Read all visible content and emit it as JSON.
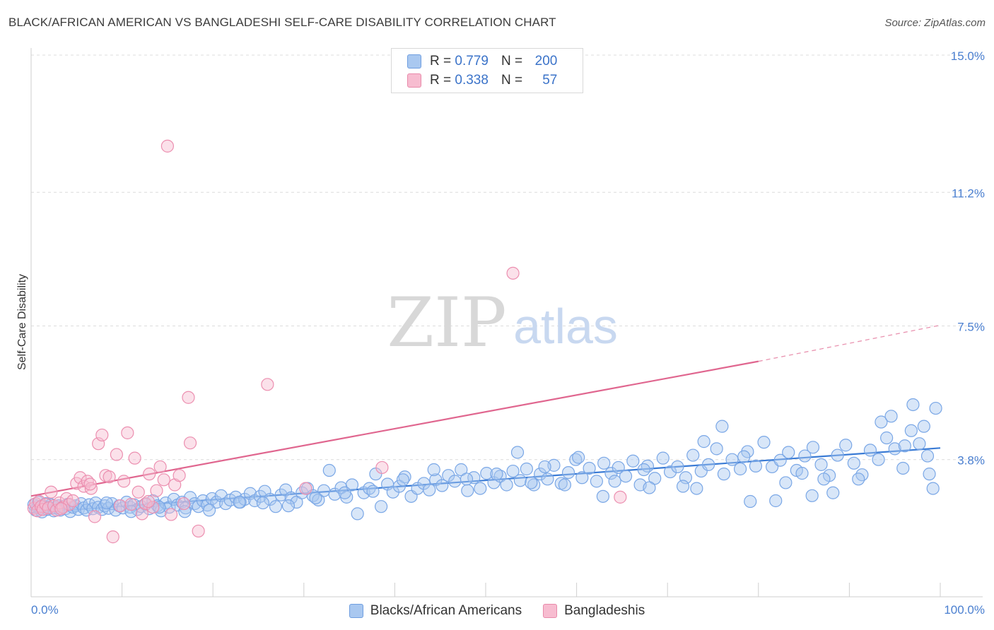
{
  "title": "BLACK/AFRICAN AMERICAN VS BANGLADESHI SELF-CARE DISABILITY CORRELATION CHART",
  "source": "Source: ZipAtlas.com",
  "watermark": {
    "zip": "ZIP",
    "atlas": "atlas"
  },
  "legend_top": [
    {
      "r_label": "R =",
      "r_value": "0.779",
      "n_label": "N =",
      "n_value": "200",
      "color": "#a9c8f0",
      "border": "#6f9ee0"
    },
    {
      "r_label": "R =",
      "r_value": "0.338",
      "n_label": "N =",
      "n_value": "57",
      "color": "#f7bcd0",
      "border": "#e88aaa"
    }
  ],
  "chart_data": {
    "type": "scatter",
    "xlabel": "",
    "ylabel": "Self-Care Disability",
    "xlim": [
      0,
      100
    ],
    "ylim": [
      0,
      15
    ],
    "x_tick_labels": [
      "0.0%",
      "100.0%"
    ],
    "y_ticks": [
      3.8,
      7.5,
      11.2,
      15.0
    ],
    "y_tick_labels": [
      "3.8%",
      "7.5%",
      "11.2%",
      "15.0%"
    ],
    "grid": "horizontal-dashed",
    "legend_position": "bottom",
    "series": [
      {
        "name": "Blacks/African Americans",
        "color": "#7aa7e6",
        "fill": "rgba(168,200,240,0.45)",
        "trend_color": "#3a7bd5",
        "trend": {
          "x0": 0,
          "y0": 2.33,
          "x1": 100,
          "y1": 4.12
        },
        "points": [
          [
            0.3,
            2.55
          ],
          [
            0.5,
            2.4
          ],
          [
            0.7,
            2.5
          ],
          [
            0.8,
            2.62
          ],
          [
            1.0,
            2.45
          ],
          [
            1.2,
            2.35
          ],
          [
            1.4,
            2.5
          ],
          [
            1.6,
            2.58
          ],
          [
            1.8,
            2.42
          ],
          [
            2.0,
            2.48
          ],
          [
            2.2,
            2.55
          ],
          [
            2.5,
            2.38
          ],
          [
            2.7,
            2.46
          ],
          [
            3.0,
            2.52
          ],
          [
            3.2,
            2.4
          ],
          [
            3.5,
            2.5
          ],
          [
            3.8,
            2.44
          ],
          [
            4.0,
            2.56
          ],
          [
            4.3,
            2.36
          ],
          [
            4.6,
            2.48
          ],
          [
            4.9,
            2.52
          ],
          [
            5.2,
            2.42
          ],
          [
            5.5,
            2.58
          ],
          [
            5.8,
            2.46
          ],
          [
            6.1,
            2.4
          ],
          [
            6.4,
            2.55
          ],
          [
            6.8,
            2.44
          ],
          [
            7.1,
            2.6
          ],
          [
            7.4,
            2.48
          ],
          [
            7.8,
            2.42
          ],
          [
            8.1,
            2.52
          ],
          [
            8.5,
            2.45
          ],
          [
            8.9,
            2.58
          ],
          [
            9.3,
            2.4
          ],
          [
            9.7,
            2.52
          ],
          [
            10.1,
            2.46
          ],
          [
            10.5,
            2.62
          ],
          [
            10.9,
            2.48
          ],
          [
            11.3,
            2.55
          ],
          [
            11.7,
            2.42
          ],
          [
            12.1,
            2.5
          ],
          [
            12.6,
            2.56
          ],
          [
            13.0,
            2.44
          ],
          [
            13.4,
            2.66
          ],
          [
            13.9,
            2.52
          ],
          [
            14.3,
            2.38
          ],
          [
            14.8,
            2.6
          ],
          [
            15.2,
            2.48
          ],
          [
            15.7,
            2.7
          ],
          [
            16.1,
            2.54
          ],
          [
            16.6,
            2.62
          ],
          [
            17.0,
            2.46
          ],
          [
            17.5,
            2.75
          ],
          [
            18.0,
            2.58
          ],
          [
            18.4,
            2.5
          ],
          [
            18.9,
            2.66
          ],
          [
            19.4,
            2.54
          ],
          [
            19.9,
            2.72
          ],
          [
            20.4,
            2.62
          ],
          [
            20.9,
            2.8
          ],
          [
            21.4,
            2.58
          ],
          [
            21.9,
            2.68
          ],
          [
            22.5,
            2.76
          ],
          [
            23.0,
            2.62
          ],
          [
            23.5,
            2.7
          ],
          [
            24.1,
            2.86
          ],
          [
            24.6,
            2.66
          ],
          [
            25.2,
            2.78
          ],
          [
            25.7,
            2.92
          ],
          [
            26.3,
            2.7
          ],
          [
            26.9,
            2.5
          ],
          [
            27.5,
            2.82
          ],
          [
            28.0,
            2.96
          ],
          [
            28.6,
            2.74
          ],
          [
            29.2,
            2.62
          ],
          [
            29.8,
            2.88
          ],
          [
            30.4,
            3.0
          ],
          [
            31.0,
            2.8
          ],
          [
            31.6,
            2.68
          ],
          [
            32.2,
            2.94
          ],
          [
            32.8,
            3.5
          ],
          [
            33.4,
            2.84
          ],
          [
            34.1,
            3.02
          ],
          [
            34.7,
            2.76
          ],
          [
            35.3,
            3.1
          ],
          [
            35.9,
            2.3
          ],
          [
            36.6,
            2.88
          ],
          [
            37.2,
            3.0
          ],
          [
            37.9,
            3.4
          ],
          [
            38.5,
            2.5
          ],
          [
            39.2,
            3.12
          ],
          [
            39.8,
            2.9
          ],
          [
            40.5,
            3.06
          ],
          [
            41.1,
            3.32
          ],
          [
            41.8,
            2.78
          ],
          [
            42.5,
            3.0
          ],
          [
            43.2,
            3.14
          ],
          [
            43.8,
            2.96
          ],
          [
            44.5,
            3.24
          ],
          [
            45.2,
            3.08
          ],
          [
            45.9,
            3.36
          ],
          [
            46.6,
            3.2
          ],
          [
            47.3,
            3.52
          ],
          [
            48.0,
            2.94
          ],
          [
            48.7,
            3.3
          ],
          [
            49.4,
            3.0
          ],
          [
            50.1,
            3.42
          ],
          [
            50.9,
            3.16
          ],
          [
            51.6,
            3.34
          ],
          [
            52.3,
            3.1
          ],
          [
            53.0,
            3.48
          ],
          [
            53.8,
            3.22
          ],
          [
            54.5,
            3.54
          ],
          [
            55.3,
            3.1
          ],
          [
            56.0,
            3.4
          ],
          [
            56.8,
            3.26
          ],
          [
            57.5,
            3.64
          ],
          [
            58.3,
            3.14
          ],
          [
            59.1,
            3.44
          ],
          [
            59.9,
            3.8
          ],
          [
            60.6,
            3.3
          ],
          [
            61.4,
            3.56
          ],
          [
            62.2,
            3.2
          ],
          [
            63.0,
            3.7
          ],
          [
            63.8,
            3.42
          ],
          [
            64.6,
            3.58
          ],
          [
            65.4,
            3.34
          ],
          [
            66.2,
            3.76
          ],
          [
            67.0,
            3.1
          ],
          [
            67.8,
            3.62
          ],
          [
            68.6,
            3.28
          ],
          [
            69.5,
            3.84
          ],
          [
            70.3,
            3.46
          ],
          [
            71.1,
            3.6
          ],
          [
            72.0,
            3.3
          ],
          [
            72.8,
            3.92
          ],
          [
            73.7,
            3.48
          ],
          [
            74.5,
            3.66
          ],
          [
            75.4,
            4.1
          ],
          [
            76.2,
            3.4
          ],
          [
            77.1,
            3.8
          ],
          [
            78.0,
            3.54
          ],
          [
            78.8,
            4.02
          ],
          [
            79.7,
            3.62
          ],
          [
            80.6,
            4.28
          ],
          [
            81.5,
            3.6
          ],
          [
            82.4,
            3.78
          ],
          [
            83.3,
            4.0
          ],
          [
            84.2,
            3.5
          ],
          [
            85.1,
            3.9
          ],
          [
            86.0,
            4.14
          ],
          [
            86.9,
            3.66
          ],
          [
            87.8,
            3.36
          ],
          [
            88.7,
            3.92
          ],
          [
            89.6,
            4.2
          ],
          [
            90.5,
            3.7
          ],
          [
            91.4,
            3.38
          ],
          [
            92.3,
            4.06
          ],
          [
            93.2,
            3.8
          ],
          [
            94.1,
            4.4
          ],
          [
            95.0,
            4.1
          ],
          [
            95.9,
            3.56
          ],
          [
            96.8,
            4.6
          ],
          [
            97.7,
            4.24
          ],
          [
            98.6,
            3.9
          ],
          [
            99.5,
            5.22
          ],
          [
            97.0,
            5.32
          ],
          [
            98.2,
            4.72
          ],
          [
            99.2,
            3.0
          ],
          [
            98.8,
            3.4
          ],
          [
            93.5,
            4.84
          ],
          [
            94.6,
            5.0
          ],
          [
            96.1,
            4.18
          ],
          [
            87.2,
            3.26
          ],
          [
            85.9,
            2.8
          ],
          [
            81.9,
            2.66
          ],
          [
            79.1,
            2.64
          ],
          [
            76.0,
            4.72
          ],
          [
            74.0,
            4.3
          ],
          [
            71.7,
            3.06
          ],
          [
            67.4,
            3.52
          ],
          [
            64.2,
            3.2
          ],
          [
            60.2,
            3.86
          ],
          [
            58.7,
            3.1
          ],
          [
            55.0,
            3.16
          ],
          [
            51.2,
            3.4
          ],
          [
            47.9,
            3.26
          ],
          [
            44.3,
            3.52
          ],
          [
            40.9,
            3.24
          ],
          [
            37.6,
            2.92
          ],
          [
            34.5,
            2.88
          ],
          [
            31.3,
            2.74
          ],
          [
            28.3,
            2.52
          ],
          [
            25.5,
            2.6
          ],
          [
            22.9,
            2.62
          ],
          [
            19.6,
            2.4
          ],
          [
            16.9,
            2.36
          ],
          [
            14.1,
            2.48
          ],
          [
            11.0,
            2.36
          ],
          [
            8.3,
            2.6
          ],
          [
            68.0,
            3.02
          ],
          [
            73.2,
            3.0
          ],
          [
            78.4,
            3.88
          ],
          [
            83.0,
            3.16
          ],
          [
            88.2,
            2.88
          ],
          [
            91.0,
            3.26
          ],
          [
            84.8,
            3.42
          ],
          [
            62.9,
            2.78
          ],
          [
            56.5,
            3.6
          ],
          [
            53.5,
            4.0
          ]
        ]
      },
      {
        "name": "Bangladeshis",
        "color": "#ec8fb0",
        "fill": "rgba(247,188,208,0.45)",
        "trend_color": "#e0668f",
        "trend": {
          "x0": 0,
          "y0": 2.79,
          "x1": 80,
          "y1": 6.52
        },
        "trend_dashed_to": {
          "x": 100,
          "y": 7.52
        },
        "points": [
          [
            0.3,
            2.45
          ],
          [
            0.5,
            2.58
          ],
          [
            0.7,
            2.38
          ],
          [
            0.9,
            2.64
          ],
          [
            1.1,
            2.5
          ],
          [
            1.3,
            2.42
          ],
          [
            1.6,
            2.56
          ],
          [
            1.9,
            2.46
          ],
          [
            2.2,
            2.9
          ],
          [
            2.5,
            2.52
          ],
          [
            2.8,
            2.4
          ],
          [
            3.1,
            2.6
          ],
          [
            3.5,
            2.48
          ],
          [
            3.9,
            2.72
          ],
          [
            4.2,
            2.56
          ],
          [
            4.6,
            2.66
          ],
          [
            5.0,
            3.14
          ],
          [
            5.4,
            3.3
          ],
          [
            5.8,
            3.06
          ],
          [
            6.2,
            3.2
          ],
          [
            6.6,
            3.0
          ],
          [
            7.0,
            2.22
          ],
          [
            7.4,
            4.24
          ],
          [
            7.8,
            4.48
          ],
          [
            8.2,
            3.36
          ],
          [
            8.6,
            3.32
          ],
          [
            9.0,
            1.66
          ],
          [
            9.4,
            3.94
          ],
          [
            9.8,
            2.52
          ],
          [
            10.2,
            3.2
          ],
          [
            10.6,
            4.54
          ],
          [
            11.0,
            2.56
          ],
          [
            11.4,
            3.84
          ],
          [
            11.8,
            2.9
          ],
          [
            12.2,
            2.3
          ],
          [
            12.6,
            2.58
          ],
          [
            13.0,
            3.4
          ],
          [
            13.4,
            2.48
          ],
          [
            13.8,
            2.94
          ],
          [
            14.2,
            3.6
          ],
          [
            14.6,
            3.24
          ],
          [
            15.0,
            12.48
          ],
          [
            15.4,
            2.28
          ],
          [
            15.8,
            3.1
          ],
          [
            16.3,
            3.36
          ],
          [
            16.8,
            2.58
          ],
          [
            17.3,
            5.52
          ],
          [
            17.5,
            4.26
          ],
          [
            18.4,
            1.82
          ],
          [
            26.0,
            5.88
          ],
          [
            30.2,
            3.0
          ],
          [
            38.6,
            3.58
          ],
          [
            53.0,
            8.96
          ],
          [
            64.8,
            2.76
          ],
          [
            6.5,
            3.12
          ],
          [
            3.3,
            2.44
          ],
          [
            12.9,
            2.64
          ]
        ]
      }
    ]
  }
}
